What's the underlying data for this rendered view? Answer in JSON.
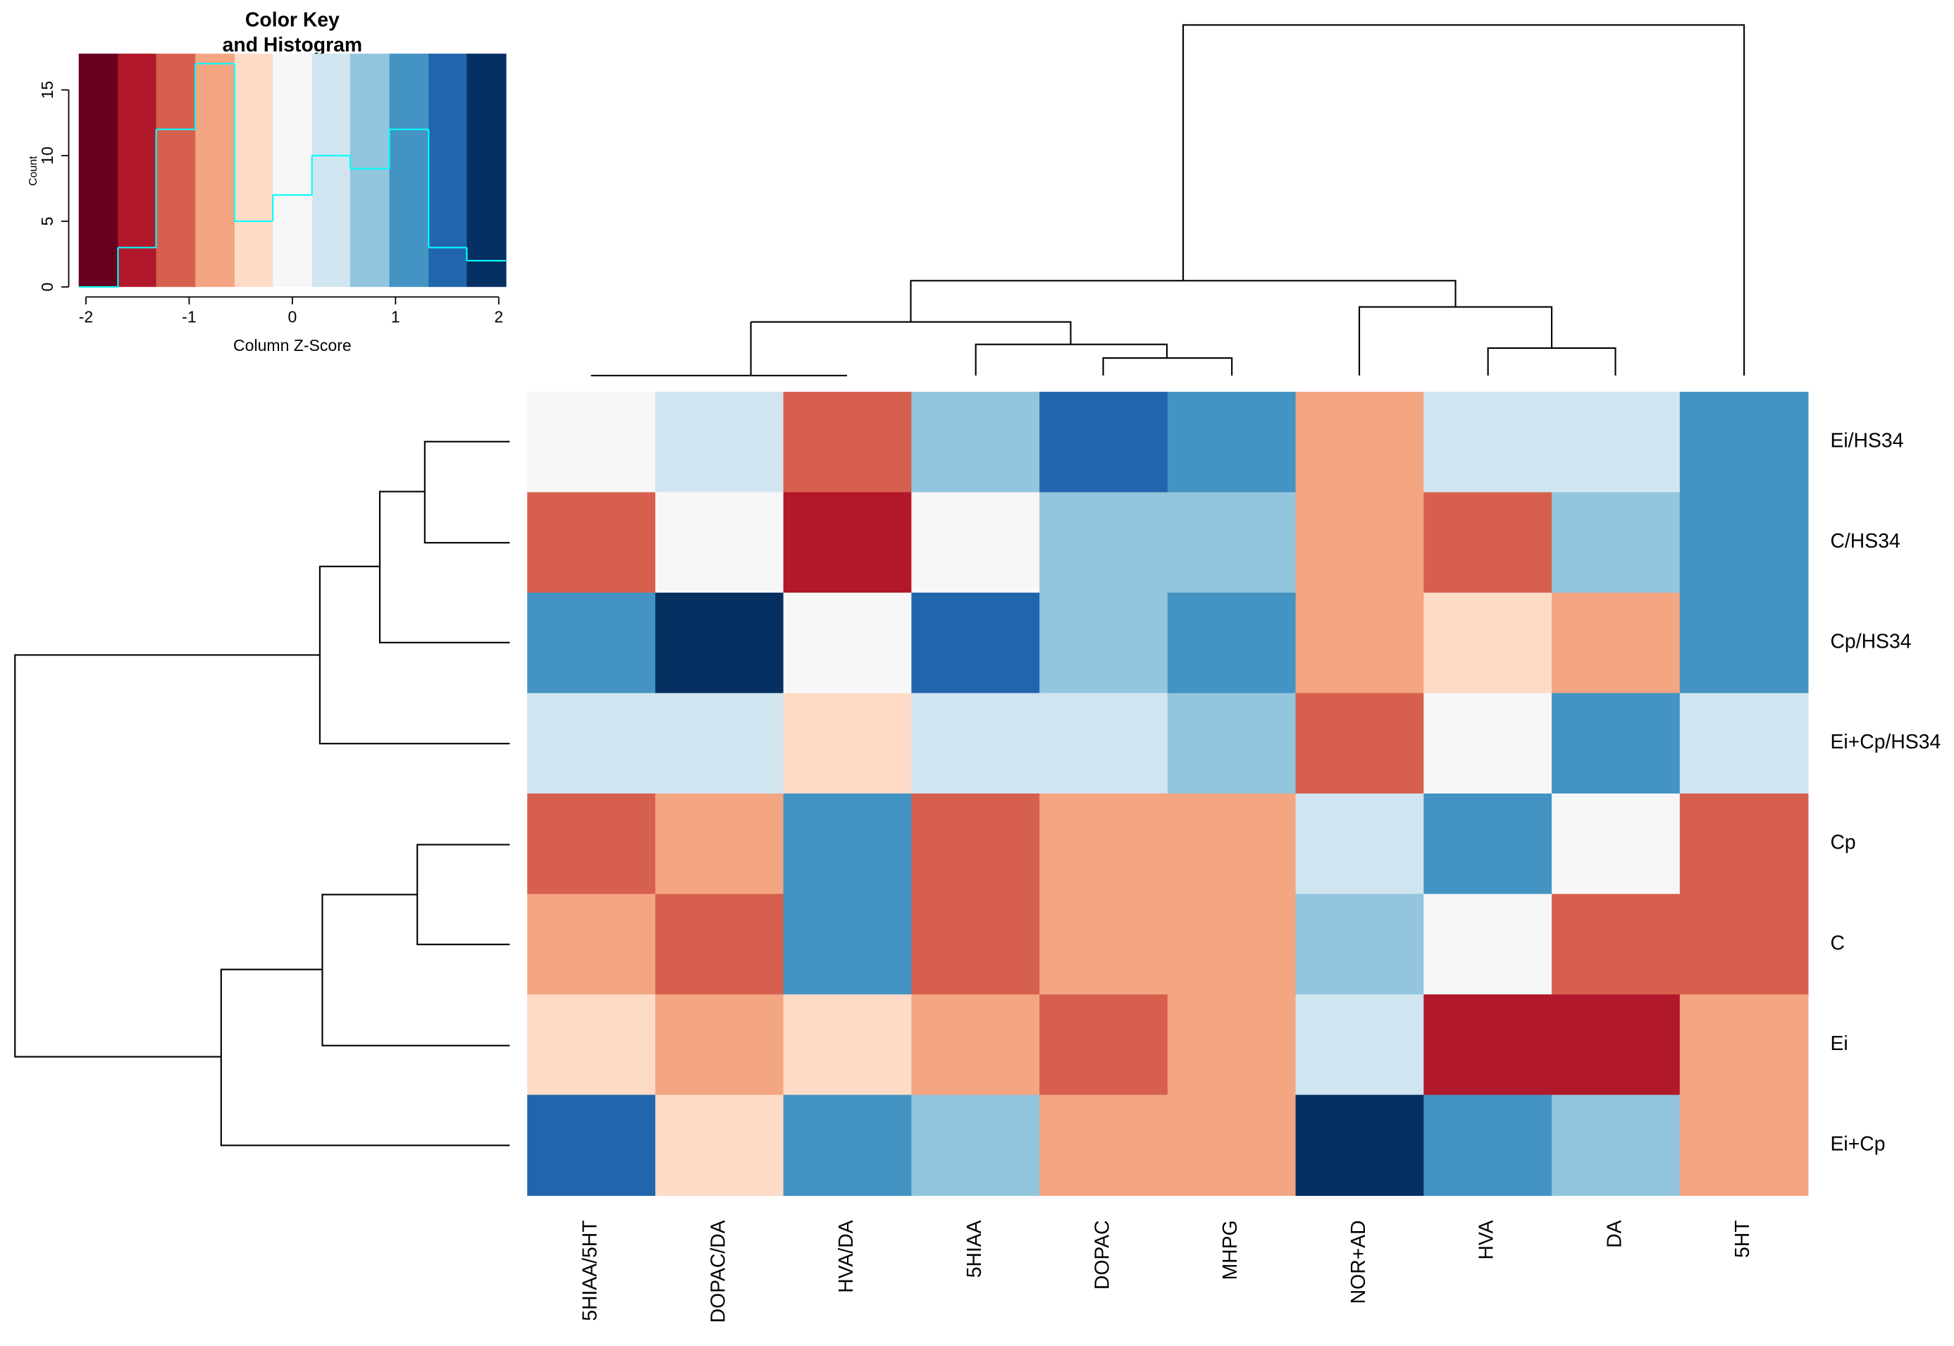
{
  "chart_data": [
    {
      "type": "heatmap",
      "categories": [
        "5HIAA/5HT",
        "DOPAC/DA",
        "HVA/DA",
        "5HIAA",
        "DOPAC",
        "MHPG",
        "NOR+AD",
        "HVA",
        "DA",
        "5HT"
      ],
      "rows": [
        "Ei/HS34",
        "C/HS34",
        "Cp/HS34",
        "Ei+Cp/HS34",
        "Cp",
        "C",
        "Ei",
        "Ei+Cp"
      ],
      "values": [
        [
          0,
          0.38,
          -1.13,
          0.75,
          1.5,
          1.13,
          -0.75,
          0.38,
          0.38,
          1.13
        ],
        [
          -1.13,
          0,
          -1.5,
          0,
          0.75,
          0.75,
          -0.75,
          -1.13,
          0.75,
          1.13
        ],
        [
          1.13,
          1.88,
          0,
          1.5,
          0.75,
          1.13,
          -0.75,
          -0.38,
          -0.75,
          1.13
        ],
        [
          0.38,
          0.38,
          -0.38,
          0.38,
          0.38,
          0.75,
          -1.13,
          0,
          1.13,
          0.38
        ],
        [
          -1.13,
          -0.75,
          1.13,
          -1.13,
          -0.75,
          -0.75,
          0.38,
          1.13,
          0,
          -1.13
        ],
        [
          -0.75,
          -1.13,
          1.13,
          -1.13,
          -0.75,
          -0.75,
          0.75,
          0,
          -1.13,
          -1.13
        ],
        [
          -0.38,
          -0.75,
          -0.38,
          -0.75,
          -1.13,
          -0.75,
          0.38,
          -1.5,
          -1.5,
          -0.75
        ],
        [
          1.5,
          -0.38,
          1.13,
          0.75,
          -0.75,
          -0.75,
          1.88,
          1.13,
          0.75,
          -0.75
        ]
      ],
      "breaks": [
        -2.07,
        -1.69,
        -1.32,
        -0.94,
        -0.56,
        -0.19,
        0.19,
        0.56,
        0.94,
        1.32,
        1.69,
        2.07
      ],
      "colors": [
        "#67001F",
        "#B2182B",
        "#D6604D",
        "#F4A582",
        "#FDDBC7",
        "#F7F7F7",
        "#D1E5F0",
        "#92C5DE",
        "#4393C3",
        "#2166AC",
        "#053061"
      ]
    },
    {
      "type": "histogram",
      "title": "Color Key",
      "subtitle": "and Histogram",
      "xlabel": "Column Z-Score",
      "ylabel": "Count",
      "bins": [
        -2.07,
        -1.69,
        -1.32,
        -0.94,
        -0.56,
        -0.19,
        0.19,
        0.56,
        0.94,
        1.32,
        1.69,
        2.07
      ],
      "counts": [
        0,
        3,
        12,
        17,
        5,
        7,
        10,
        9,
        12,
        3,
        2
      ],
      "color": "#00FFFF",
      "xlim": [
        -2.07,
        2.07
      ],
      "xticks": [
        -2,
        -1,
        0,
        1,
        2
      ],
      "ylim": [
        0,
        17.76
      ],
      "yticks": [
        0,
        5,
        10,
        15
      ]
    }
  ]
}
